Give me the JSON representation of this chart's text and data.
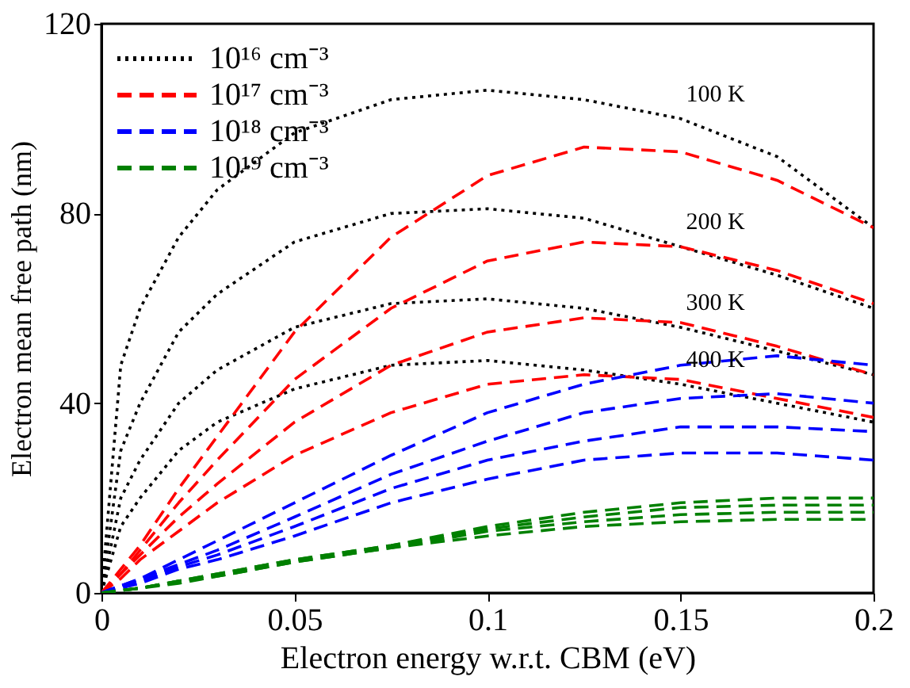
{
  "chart_data": {
    "type": "line",
    "xlabel": "Electron energy w.r.t. CBM (eV)",
    "ylabel": "Electron mean free path (nm)",
    "x": [
      0,
      0.005,
      0.01,
      0.02,
      0.03,
      0.05,
      0.075,
      0.1,
      0.125,
      0.15,
      0.175,
      0.2
    ],
    "xlim": [
      0,
      0.2
    ],
    "xticks": [
      0,
      0.05,
      0.1,
      0.15,
      0.2
    ],
    "ylim": [
      0,
      120
    ],
    "yticks": [
      0,
      40,
      80,
      120
    ],
    "grid": false,
    "legend": "top left",
    "series": [
      {
        "name": "10¹⁶ cm⁻³",
        "color": "#000000",
        "line_style": "dotted",
        "values": [
          0,
          48,
          60,
          75,
          85,
          97,
          104,
          106,
          104,
          100,
          92,
          77
        ]
      },
      {
        "color": "#000000",
        "line_style": "dotted",
        "values": [
          0,
          30,
          40,
          55,
          63,
          74,
          80,
          81,
          79,
          73,
          67,
          60
        ]
      },
      {
        "color": "#000000",
        "line_style": "dotted",
        "values": [
          0,
          20,
          28,
          40,
          47,
          56,
          61,
          62,
          60,
          56,
          51,
          46
        ]
      },
      {
        "color": "#000000",
        "line_style": "dotted",
        "values": [
          0,
          14,
          20,
          30,
          36,
          43,
          48,
          49,
          47,
          44,
          40,
          36
        ]
      },
      {
        "name": "10¹⁷ cm⁻³",
        "color": "#ff0000",
        "line_style": "dashed",
        "values": [
          0,
          5,
          10,
          22,
          33,
          55,
          75,
          88,
          94,
          93,
          87,
          77
        ]
      },
      {
        "color": "#ff0000",
        "line_style": "dashed",
        "values": [
          0,
          4,
          9,
          19,
          28,
          45,
          60,
          70,
          74,
          73,
          68,
          61
        ]
      },
      {
        "color": "#ff0000",
        "line_style": "dashed",
        "values": [
          0,
          4,
          8,
          16,
          23,
          36,
          48,
          55,
          58,
          57,
          52,
          46
        ]
      },
      {
        "color": "#ff0000",
        "line_style": "dashed",
        "values": [
          0,
          3,
          7,
          13,
          19,
          29,
          38,
          44,
          46,
          45,
          41,
          37
        ]
      },
      {
        "name": "10¹⁸ cm⁻³",
        "color": "#0000ff",
        "line_style": "dashed",
        "values": [
          0,
          1.5,
          3,
          7,
          11,
          19,
          29,
          38,
          44,
          48,
          50,
          48
        ]
      },
      {
        "color": "#0000ff",
        "line_style": "dashed",
        "values": [
          0,
          1.5,
          3,
          6,
          9,
          16,
          25,
          32,
          38,
          41,
          42,
          40
        ]
      },
      {
        "color": "#0000ff",
        "line_style": "dashed",
        "values": [
          0,
          1.5,
          2.5,
          5.5,
          8,
          14,
          22,
          28,
          32,
          35,
          35,
          34
        ]
      },
      {
        "color": "#0000ff",
        "line_style": "dashed",
        "values": [
          0,
          1,
          2,
          5,
          7,
          12,
          19,
          24,
          28,
          29.5,
          29.5,
          28
        ]
      },
      {
        "name": "10¹⁹ cm⁻³",
        "color": "#008000",
        "line_style": "dashed",
        "values": [
          0,
          0.5,
          1,
          2.5,
          4,
          7,
          10,
          14,
          17,
          19,
          20,
          20
        ]
      },
      {
        "color": "#008000",
        "line_style": "dashed",
        "values": [
          0,
          0.5,
          1,
          2.5,
          4,
          7,
          10,
          13.5,
          16,
          18,
          18.5,
          18.5
        ]
      },
      {
        "color": "#008000",
        "line_style": "dashed",
        "values": [
          0,
          0.5,
          1,
          2.5,
          3.5,
          6.5,
          9.5,
          13,
          15,
          16.5,
          17,
          17
        ]
      },
      {
        "color": "#008000",
        "line_style": "dashed",
        "values": [
          0,
          0.5,
          1,
          2,
          3.5,
          6.5,
          9.5,
          12,
          14,
          15,
          15.5,
          15.5
        ]
      }
    ],
    "annotations": [
      "100 K",
      "200 K",
      "300 K",
      "400 K"
    ]
  }
}
